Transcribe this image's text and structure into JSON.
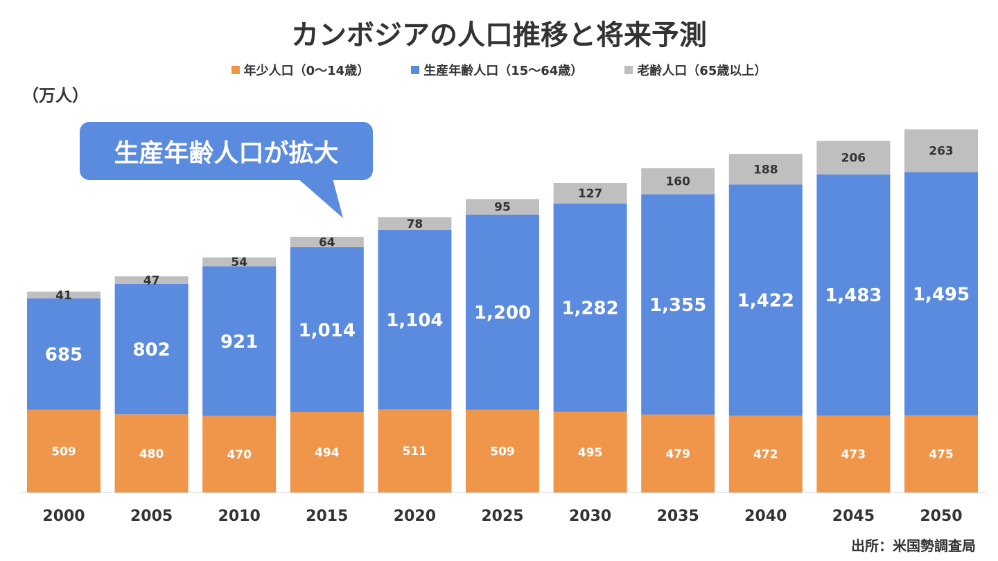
{
  "chart_data": {
    "type": "bar",
    "stacked": true,
    "title": "カンボジアの人口推移と将来予測",
    "ylabel": "（万人）",
    "categories": [
      "2000",
      "2005",
      "2010",
      "2015",
      "2020",
      "2025",
      "2030",
      "2035",
      "2040",
      "2045",
      "2050"
    ],
    "series": [
      {
        "name": "年少人口（0〜14歳）",
        "color": "#F0964B",
        "values": [
          509,
          480,
          470,
          494,
          511,
          509,
          495,
          479,
          472,
          473,
          475
        ],
        "labels": [
          "509",
          "480",
          "470",
          "494",
          "511",
          "509",
          "495",
          "479",
          "472",
          "473",
          "475"
        ]
      },
      {
        "name": "生産年齢人口（15〜64歳）",
        "color": "#5B8BDE",
        "values": [
          685,
          802,
          921,
          1014,
          1104,
          1200,
          1282,
          1355,
          1422,
          1483,
          1495
        ],
        "labels": [
          "685",
          "802",
          "921",
          "1,014",
          "1,104",
          "1,200",
          "1,282",
          "1,355",
          "1,422",
          "1,483",
          "1,495"
        ]
      },
      {
        "name": "老齢人口（65歳以上）",
        "color": "#BFBFBF",
        "values": [
          41,
          47,
          54,
          64,
          78,
          95,
          127,
          160,
          188,
          206,
          263
        ],
        "labels": [
          "41",
          "47",
          "54",
          "64",
          "78",
          "95",
          "127",
          "160",
          "188",
          "206",
          "263"
        ]
      }
    ],
    "legend_position": "top",
    "grid": false,
    "annotation": "生産年齢人口が拡大",
    "source": "出所：米国勢調査局"
  }
}
